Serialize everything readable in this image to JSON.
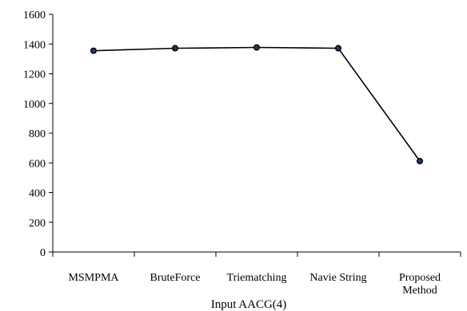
{
  "chart_data": {
    "type": "line",
    "categories": [
      "MSMPMA",
      "BruteForce",
      "Triematching",
      "Navie String",
      "Proposed Method"
    ],
    "category_lines": [
      [
        "MSMPMA"
      ],
      [
        "BruteForce"
      ],
      [
        "Triematching"
      ],
      [
        "Navie String"
      ],
      [
        "Proposed",
        "Method"
      ]
    ],
    "series": [
      {
        "values": [
          1355,
          1372,
          1377,
          1372,
          612
        ]
      }
    ],
    "xlabel": "Input AACG(4)",
    "ylabel": "",
    "ylim": [
      0,
      1600
    ],
    "yticks": [
      0,
      200,
      400,
      600,
      800,
      1000,
      1200,
      1400,
      1600
    ],
    "grid": false,
    "legend": "none",
    "colors": {
      "line": "#000000",
      "marker_fill": "#1f3a5f",
      "marker_stroke": "#000000",
      "axis": "#000000"
    }
  }
}
